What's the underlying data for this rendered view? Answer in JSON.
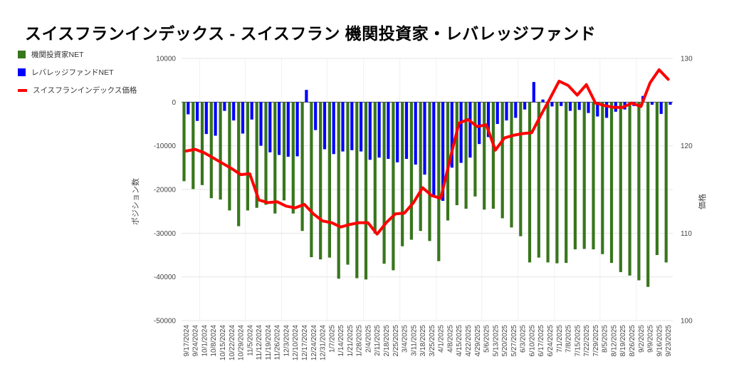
{
  "title": "スイスフランインデックス - スイスフラン 機関投資家・レバレッジファンド",
  "legend": {
    "items": [
      {
        "label": "機関投資家NET",
        "color": "#38761d",
        "swatch": "square"
      },
      {
        "label": "レバレッジファンドNET",
        "color": "#0000ff",
        "swatch": "square"
      },
      {
        "label": "スイスフランインデックス価格",
        "color": "#ff0000",
        "swatch": "line"
      }
    ]
  },
  "chart_data": {
    "type": "combo",
    "title": "スイスフランインデックス - スイスフラン 機関投資家・レバレッジファンド",
    "grid": true,
    "legend_position": "top-left",
    "categories": [
      "9/17/2024",
      "9/24/2024",
      "10/1/2024",
      "10/8/2024",
      "10/15/2024",
      "10/22/2024",
      "10/29/2024",
      "11/5/2024",
      "11/12/2024",
      "11/19/2024",
      "11/26/2024",
      "12/3/2024",
      "12/10/2024",
      "12/17/2024",
      "12/24/2024",
      "12/31/2024",
      "1/7/2025",
      "1/14/2025",
      "1/21/2025",
      "1/28/2025",
      "2/4/2025",
      "2/11/2025",
      "2/18/2025",
      "2/25/2025",
      "3/4/2025",
      "3/11/2025",
      "3/18/2025",
      "3/25/2025",
      "4/1/2025",
      "4/8/2025",
      "4/15/2025",
      "4/22/2025",
      "4/29/2025",
      "5/6/2025",
      "5/13/2025",
      "5/20/2025",
      "5/27/2025",
      "6/3/2025",
      "6/10/2025",
      "6/17/2025",
      "6/24/2025",
      "7/1/2025",
      "7/8/2025",
      "7/15/2025",
      "7/22/2025",
      "7/29/2025",
      "8/5/2025",
      "8/12/2025",
      "8/19/2025",
      "8/26/2025",
      "9/2/2025",
      "9/9/2025",
      "9/16/2025",
      "9/23/2025"
    ],
    "series": [
      {
        "name": "機関投資家NET",
        "type": "bar",
        "axis": "left",
        "color": "#38761d",
        "values": [
          -18100,
          -19900,
          -19000,
          -22000,
          -22300,
          -24800,
          -28400,
          -24800,
          -24200,
          -23500,
          -25500,
          -22500,
          -25500,
          -29500,
          -35500,
          -36000,
          -35600,
          -40400,
          -37200,
          -40300,
          -40600,
          -30100,
          -37000,
          -38500,
          -33000,
          -31500,
          -29500,
          -31800,
          -36400,
          -27100,
          -23600,
          -24400,
          -21600,
          -24600,
          -24400,
          -26600,
          -28700,
          -30700,
          -36700,
          -35600,
          -36700,
          -36900,
          -36800,
          -33700,
          -33600,
          -33700,
          -34800,
          -36800,
          -38900,
          -39700,
          -40800,
          -42300,
          -35000,
          -36700
        ]
      },
      {
        "name": "レバレッジファンドNET",
        "type": "bar",
        "axis": "left",
        "color": "#0000ff",
        "values": [
          -2800,
          -4300,
          -7300,
          -7700,
          -2000,
          -4200,
          -7200,
          -4000,
          -10000,
          -11500,
          -12100,
          -12500,
          -12400,
          2800,
          -6400,
          -10800,
          -11900,
          -11300,
          -11000,
          -11300,
          -13200,
          -12700,
          -13000,
          -13800,
          -13000,
          -14300,
          -16600,
          -21400,
          -22600,
          -15000,
          -13900,
          -12700,
          -9600,
          -8000,
          -5000,
          -4200,
          -3600,
          -1700,
          4600,
          600,
          -1000,
          -900,
          -2000,
          -1800,
          -2500,
          -3300,
          -3600,
          -2200,
          -1700,
          -900,
          1400,
          -600,
          -2700,
          -600
        ]
      },
      {
        "name": "スイスフランインデックス価格",
        "type": "line",
        "axis": "right",
        "color": "#ff0000",
        "values": [
          119.4,
          119.6,
          119.2,
          118.6,
          118.0,
          117.4,
          116.7,
          116.8,
          113.8,
          113.5,
          113.6,
          113.1,
          112.9,
          113.3,
          112.2,
          111.4,
          111.2,
          110.7,
          111.0,
          111.2,
          111.2,
          109.9,
          111.2,
          112.2,
          112.3,
          113.5,
          115.2,
          114.3,
          114.0,
          118.4,
          122.6,
          123.0,
          122.2,
          122.4,
          119.5,
          120.9,
          121.2,
          121.4,
          121.5,
          123.5,
          125.4,
          127.4,
          126.9,
          125.8,
          127.0,
          124.9,
          124.6,
          124.4,
          124.4,
          124.9,
          124.5,
          127.2,
          128.7,
          127.6
        ]
      }
    ],
    "left_axis": {
      "title": "ポジション数",
      "min": -50000,
      "max": 10000,
      "ticks": [
        10000,
        0,
        -10000,
        -20000,
        -30000,
        -40000,
        -50000
      ]
    },
    "right_axis": {
      "title": "価格",
      "min": 100,
      "max": 130,
      "ticks": [
        130,
        120,
        110,
        100
      ]
    }
  }
}
